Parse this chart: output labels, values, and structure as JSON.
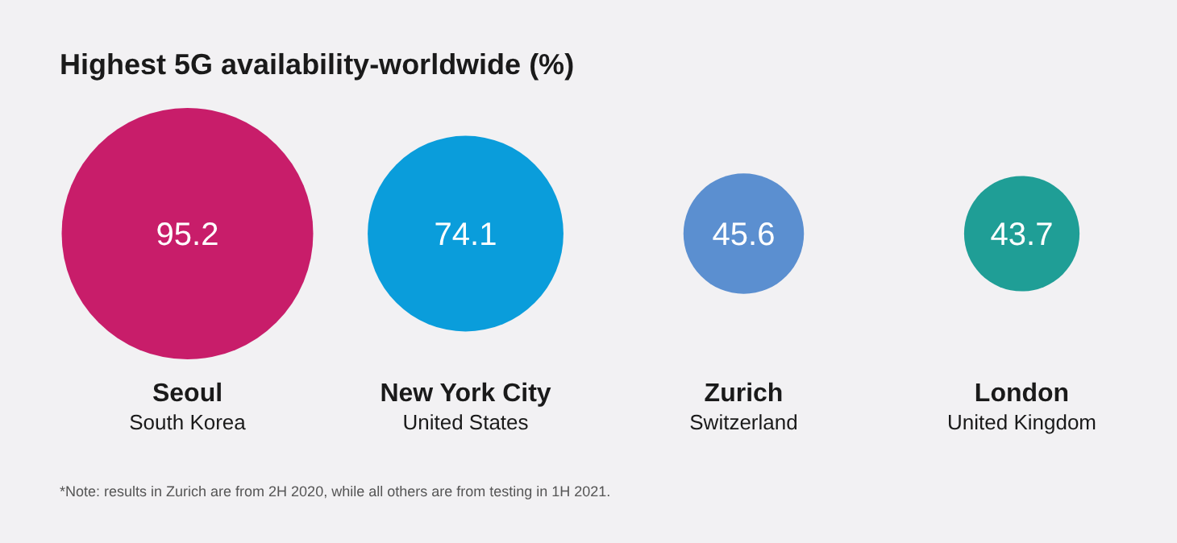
{
  "chart_data": {
    "type": "other",
    "title": "Highest 5G availability-worldwide (%)",
    "categories": [
      "Seoul\nSouth Korea",
      "New York City\nUnited States",
      "Zurich\nSwitzerland",
      "London\nUnited Kingdom"
    ],
    "values": [
      95.2,
      74.1,
      45.6,
      43.7
    ],
    "colors": [
      "#c81d6a",
      "#0a9ddb",
      "#5b8fd0",
      "#1f9e96"
    ],
    "data_labels": true,
    "annotations": [
      "*Note: results in Zurich are from 2H 2020, while all others are from testing in 1H 2021."
    ]
  }
}
